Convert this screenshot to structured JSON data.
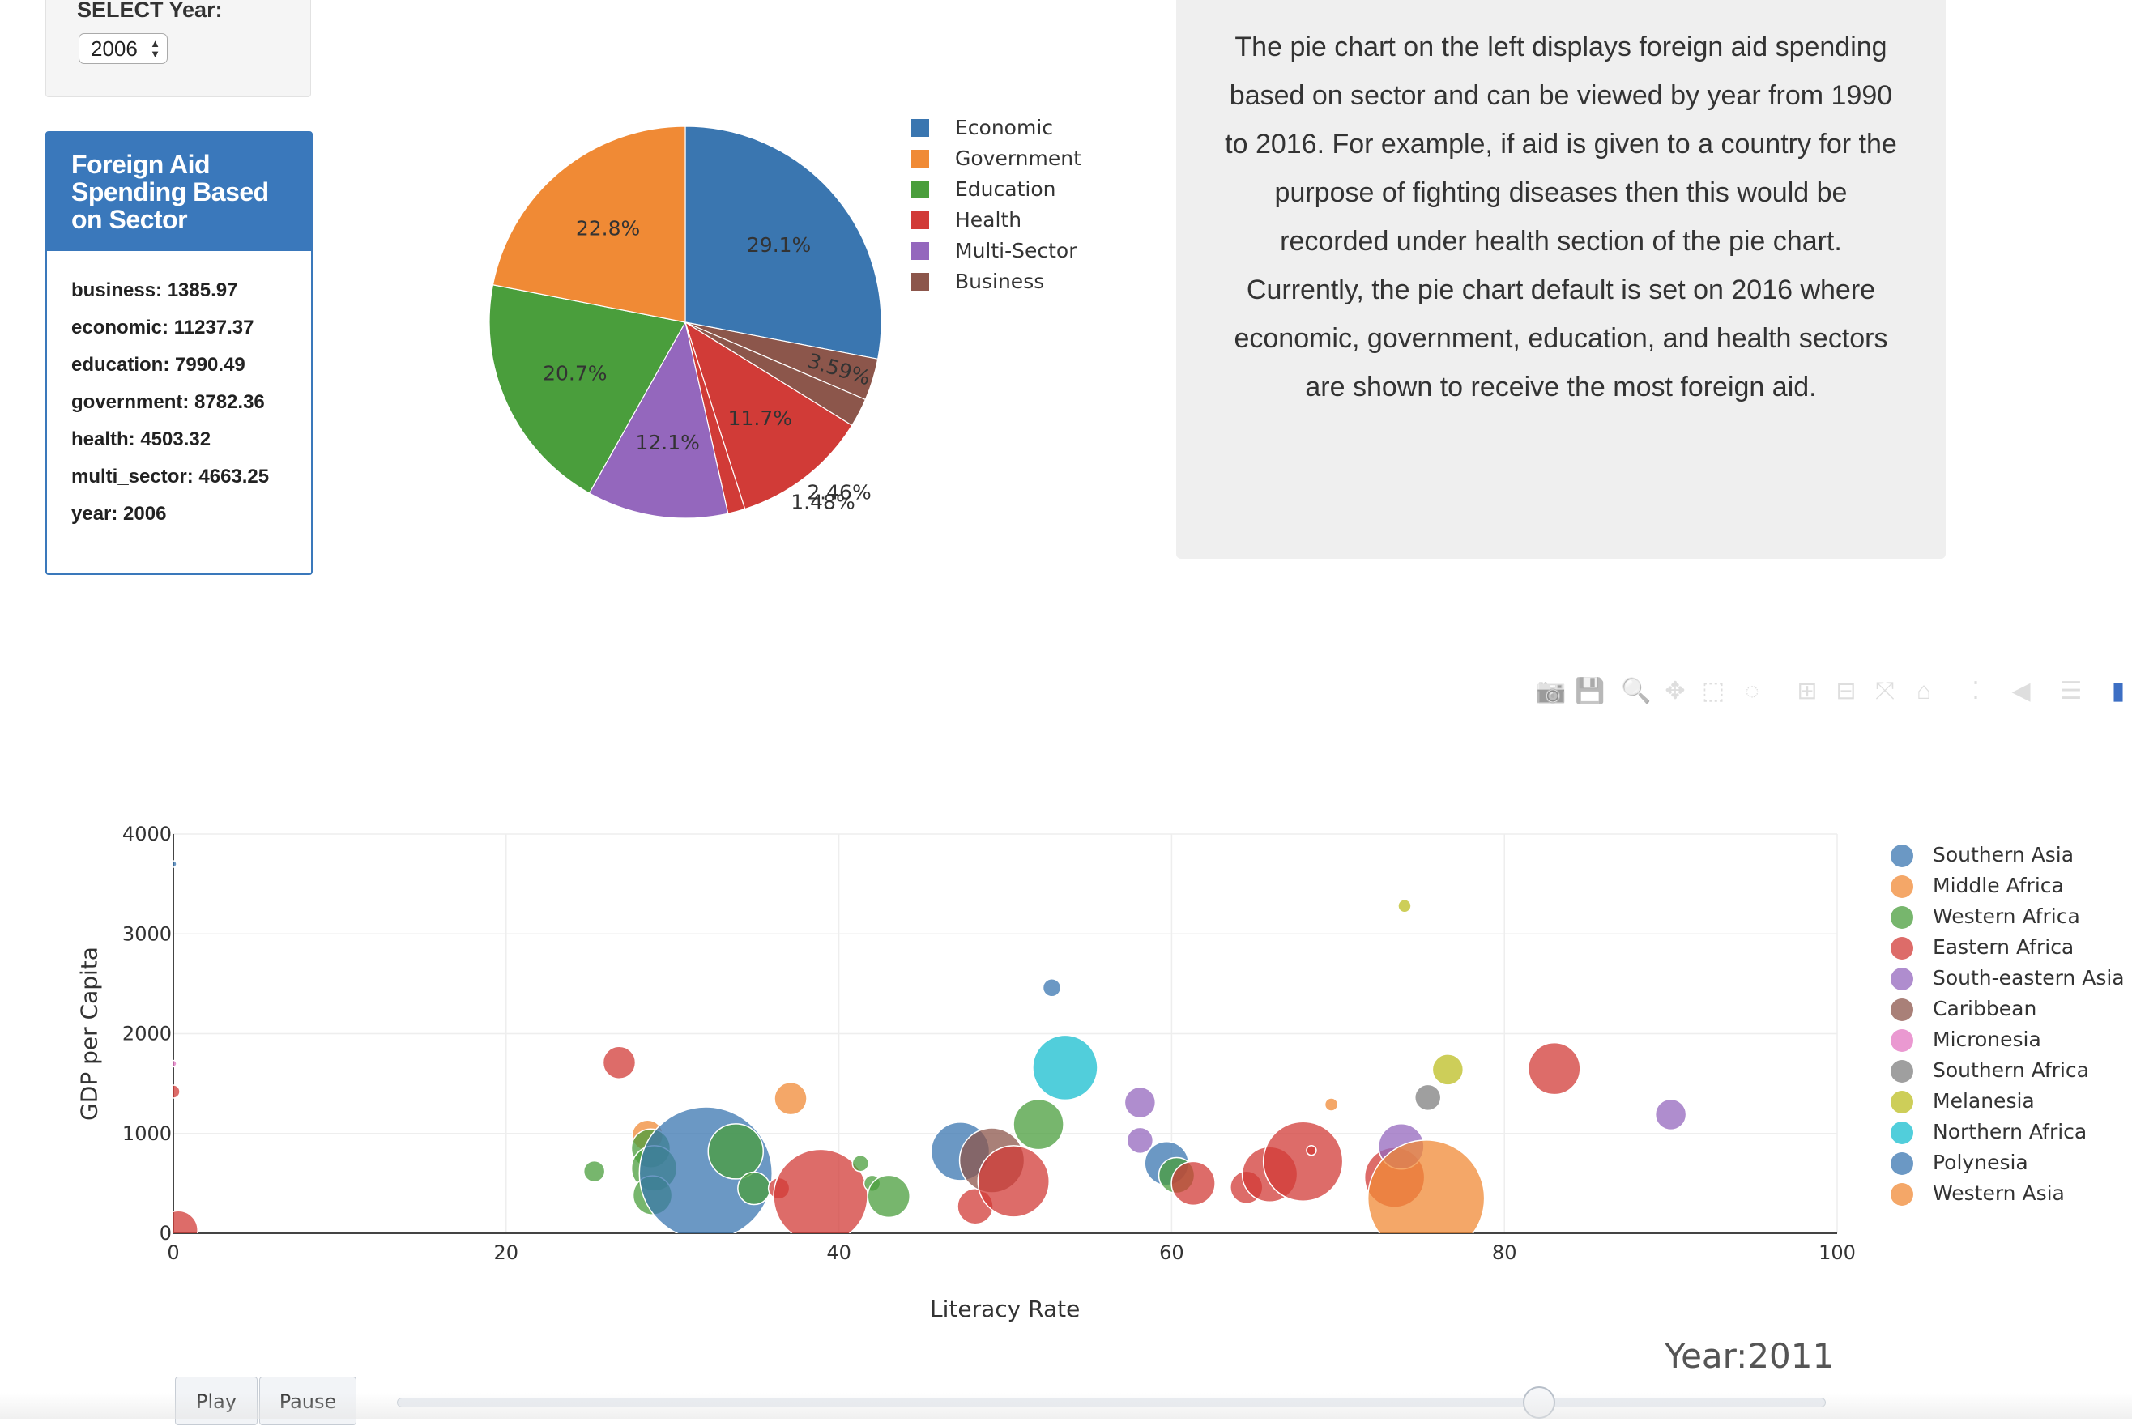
{
  "year_panel": {
    "label": "SELECT Year:",
    "selected": "2006"
  },
  "info_box": {
    "title": "Foreign Aid Spending Based on Sector",
    "rows": [
      "business: 1385.97",
      "economic: 11237.37",
      "education: 7990.49",
      "government: 8782.36",
      "health: 4503.32",
      "multi_sector: 4663.25",
      "year: 2006"
    ]
  },
  "description": "The pie chart on the left displays foreign aid spending based on sector and can be viewed by year from 1990 to 2016. For example, if aid is given to a country for the purpose of fighting diseases then this would be recorded under health section of the pie chart. Currently, the pie chart default is set on 2016 where economic, government, education, and health sectors are shown to receive the most foreign aid.",
  "modebar": {
    "icons": [
      "camera-icon",
      "save-icon",
      "zoom-icon",
      "pan-icon",
      "box-select-icon",
      "lasso-icon",
      "zoom-in-icon",
      "zoom-out-icon",
      "autoscale-icon",
      "home-icon",
      "spike-lines-icon",
      "hover-closest-icon",
      "hover-compare-icon",
      "plotly-logo-icon"
    ]
  },
  "controls": {
    "play_label": "Play",
    "pause_label": "Pause",
    "year_indicator": "Year:2011",
    "slider_position": 0.8
  },
  "chart_data": [
    {
      "type": "pie",
      "slices": [
        {
          "label": "Economic",
          "percent_label": "29.1%",
          "value": 29.1,
          "color": "#3a76b0"
        },
        {
          "label": "Business",
          "percent_label": "3.59%",
          "value": 3.59,
          "color": "#8c564b"
        },
        {
          "label": "",
          "percent_label": "2.46%",
          "value": 2.46,
          "color": "#8c564b"
        },
        {
          "label": "Health",
          "percent_label": "11.7%",
          "value": 11.7,
          "color": "#d13b37"
        },
        {
          "label": "",
          "percent_label": "1.48%",
          "value": 1.48,
          "color": "#d13b37"
        },
        {
          "label": "Multi-Sector",
          "percent_label": "12.1%",
          "value": 12.1,
          "color": "#9467bd"
        },
        {
          "label": "Education",
          "percent_label": "20.7%",
          "value": 20.7,
          "color": "#4a9e3c"
        },
        {
          "label": "Government",
          "percent_label": "22.8%",
          "value": 22.8,
          "color": "#f08a35"
        }
      ],
      "legend": [
        {
          "name": "Economic",
          "color": "#3a76b0"
        },
        {
          "name": "Government",
          "color": "#f08a35"
        },
        {
          "name": "Education",
          "color": "#4a9e3c"
        },
        {
          "name": "Health",
          "color": "#d13b37"
        },
        {
          "name": "Multi-Sector",
          "color": "#9467bd"
        },
        {
          "name": "Business",
          "color": "#8c564b"
        }
      ],
      "legend_placement": "right"
    },
    {
      "type": "scatter",
      "xlabel": "Literacy Rate",
      "ylabel": "GDP per Capita",
      "xlim": [
        0,
        100
      ],
      "ylim": [
        0,
        4000
      ],
      "x_ticks": [
        "0",
        "20",
        "40",
        "60",
        "80",
        "100"
      ],
      "y_ticks": [
        "0",
        "1000",
        "2000",
        "3000",
        "4000"
      ],
      "grid": true,
      "legend_placement": "right",
      "series": [
        {
          "name": "Southern Asia",
          "color": "#3a76b0"
        },
        {
          "name": "Middle Africa",
          "color": "#f08a35"
        },
        {
          "name": "Western Africa",
          "color": "#4a9e3c"
        },
        {
          "name": "Eastern Africa",
          "color": "#d13b37"
        },
        {
          "name": "South-eastern Asia",
          "color": "#9467bd"
        },
        {
          "name": "Caribbean",
          "color": "#8c564b"
        },
        {
          "name": "Micronesia",
          "color": "#e377c2"
        },
        {
          "name": "Southern Africa",
          "color": "#7f7f7f"
        },
        {
          "name": "Melanesia",
          "color": "#bcbd22"
        },
        {
          "name": "Northern Africa",
          "color": "#17becf"
        },
        {
          "name": "Polynesia",
          "color": "#3a76b0"
        },
        {
          "name": "Western Asia",
          "color": "#f08a35"
        }
      ],
      "points": [
        {
          "x": 0,
          "y": 3700,
          "size": 4,
          "color": "#3a76b0"
        },
        {
          "x": 0,
          "y": 1700,
          "size": 4,
          "color": "#e377c2"
        },
        {
          "x": 0,
          "y": 1420,
          "size": 8,
          "color": "#d13b37"
        },
        {
          "x": 0.3,
          "y": 30,
          "size": 24,
          "color": "#d13b37"
        },
        {
          "x": 26.8,
          "y": 1710,
          "size": 20,
          "color": "#d13b37"
        },
        {
          "x": 25.3,
          "y": 620,
          "size": 13,
          "color": "#4a9e3c"
        },
        {
          "x": 28.5,
          "y": 980,
          "size": 19,
          "color": "#f08a35"
        },
        {
          "x": 28.7,
          "y": 850,
          "size": 24,
          "color": "#4a9e3c"
        },
        {
          "x": 28.9,
          "y": 650,
          "size": 28,
          "color": "#4a9e3c"
        },
        {
          "x": 28.8,
          "y": 380,
          "size": 24,
          "color": "#4a9e3c"
        },
        {
          "x": 32.0,
          "y": 600,
          "size": 82,
          "color": "#3a76b0"
        },
        {
          "x": 33.8,
          "y": 820,
          "size": 34,
          "color": "#4a9e3c"
        },
        {
          "x": 34.9,
          "y": 450,
          "size": 20,
          "color": "#4a9e3c"
        },
        {
          "x": 36.4,
          "y": 450,
          "size": 13,
          "color": "#d13b37"
        },
        {
          "x": 37.1,
          "y": 1350,
          "size": 20,
          "color": "#f08a35"
        },
        {
          "x": 38.9,
          "y": 370,
          "size": 58,
          "color": "#d13b37"
        },
        {
          "x": 41.3,
          "y": 700,
          "size": 10,
          "color": "#4a9e3c"
        },
        {
          "x": 42.0,
          "y": 500,
          "size": 10,
          "color": "#4a9e3c"
        },
        {
          "x": 43.0,
          "y": 370,
          "size": 26,
          "color": "#4a9e3c"
        },
        {
          "x": 47.3,
          "y": 820,
          "size": 36,
          "color": "#3a76b0"
        },
        {
          "x": 48.2,
          "y": 270,
          "size": 22,
          "color": "#d13b37"
        },
        {
          "x": 49.2,
          "y": 730,
          "size": 40,
          "color": "#8c564b"
        },
        {
          "x": 50.5,
          "y": 520,
          "size": 44,
          "color": "#d13b37"
        },
        {
          "x": 52.0,
          "y": 1090,
          "size": 31,
          "color": "#4a9e3c"
        },
        {
          "x": 52.8,
          "y": 2460,
          "size": 11,
          "color": "#3a76b0"
        },
        {
          "x": 53.6,
          "y": 1660,
          "size": 40,
          "color": "#17becf"
        },
        {
          "x": 58.1,
          "y": 1310,
          "size": 19,
          "color": "#9467bd"
        },
        {
          "x": 58.1,
          "y": 930,
          "size": 16,
          "color": "#9467bd"
        },
        {
          "x": 59.7,
          "y": 700,
          "size": 27,
          "color": "#3a76b0"
        },
        {
          "x": 60.3,
          "y": 580,
          "size": 22,
          "color": "#4a9e3c"
        },
        {
          "x": 61.3,
          "y": 500,
          "size": 27,
          "color": "#d13b37"
        },
        {
          "x": 64.5,
          "y": 460,
          "size": 20,
          "color": "#d13b37"
        },
        {
          "x": 65.9,
          "y": 590,
          "size": 34,
          "color": "#d13b37"
        },
        {
          "x": 67.9,
          "y": 720,
          "size": 49,
          "color": "#d13b37"
        },
        {
          "x": 68.4,
          "y": 830,
          "size": 6,
          "color": "#d13b37"
        },
        {
          "x": 69.6,
          "y": 1290,
          "size": 8,
          "color": "#f08a35"
        },
        {
          "x": 73.4,
          "y": 560,
          "size": 37,
          "color": "#d13b37"
        },
        {
          "x": 73.8,
          "y": 870,
          "size": 28,
          "color": "#9467bd"
        },
        {
          "x": 75.3,
          "y": 350,
          "size": 72,
          "color": "#f08a35"
        },
        {
          "x": 74.0,
          "y": 3280,
          "size": 8,
          "color": "#bcbd22"
        },
        {
          "x": 75.4,
          "y": 1360,
          "size": 16,
          "color": "#7f7f7f"
        },
        {
          "x": 76.6,
          "y": 1640,
          "size": 19,
          "color": "#bcbd22"
        },
        {
          "x": 83.0,
          "y": 1650,
          "size": 32,
          "color": "#d13b37"
        },
        {
          "x": 90.0,
          "y": 1190,
          "size": 19,
          "color": "#9467bd"
        }
      ]
    }
  ]
}
